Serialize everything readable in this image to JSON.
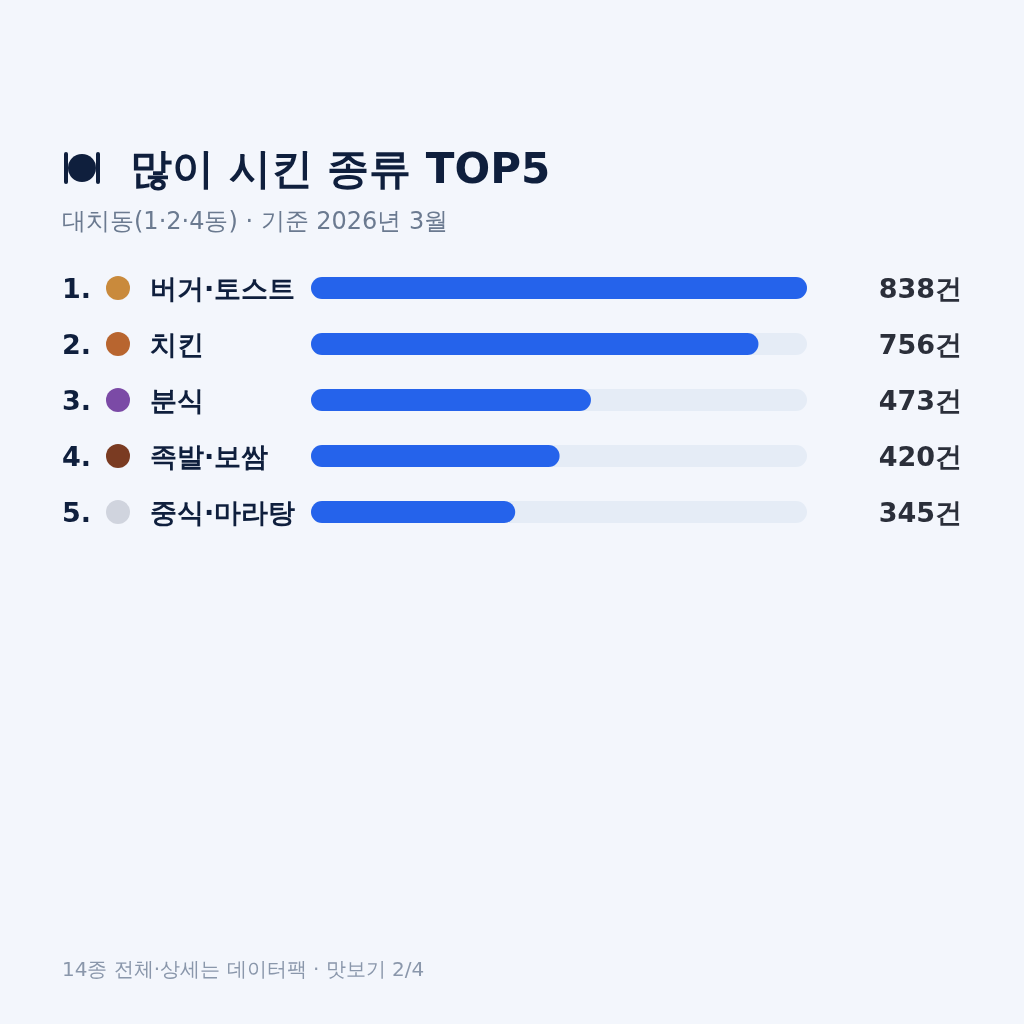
{
  "chart_data": {
    "type": "bar",
    "orientation": "horizontal",
    "title": "많이 시킨 종류 TOP5",
    "subtitle": "대치동(1·2·4동) · 기준 2026년 3월",
    "categories": [
      "버거·토스트",
      "치킨",
      "분식",
      "족발·보쌈",
      "중식·마라탕"
    ],
    "values": [
      838,
      756,
      473,
      420,
      345
    ],
    "value_labels": [
      "838건",
      "756건",
      "473건",
      "420건",
      "345건"
    ],
    "color": "#2563eb",
    "xlim": [
      0,
      838
    ],
    "annotations": [
      "1.",
      "2.",
      "3.",
      "4.",
      "5.",
      "14종 전체·상세는 데이터팩 · 맛보기 2/4"
    ]
  }
}
